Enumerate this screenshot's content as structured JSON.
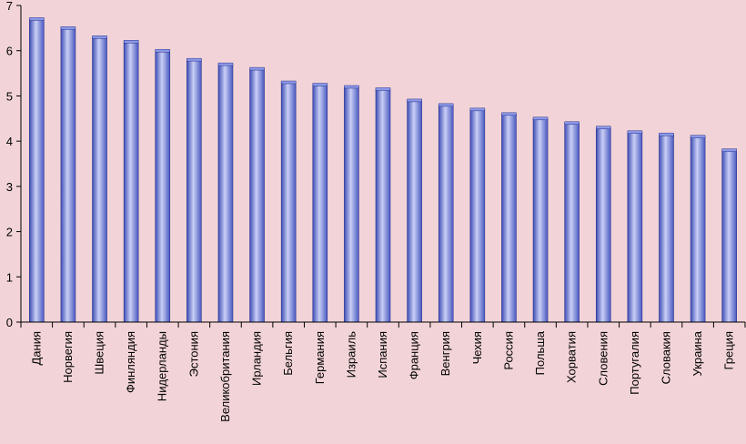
{
  "chart_data": {
    "type": "bar",
    "title": "",
    "xlabel": "",
    "ylabel": "",
    "ylim": [
      0,
      7
    ],
    "yticks": [
      0,
      1,
      2,
      3,
      4,
      5,
      6,
      7
    ],
    "grid": false,
    "legend": "none",
    "categories": [
      "Дания",
      "Норвегия",
      "Швеция",
      "Финляндия",
      "Нидерланды",
      "Эстония",
      "Великобритания",
      "Ирландия",
      "Бельгия",
      "Германия",
      "Израиль",
      "Испания",
      "Франция",
      "Венгрия",
      "Чехия",
      "Россия",
      "Польша",
      "Хорватия",
      "Словения",
      "Португалия",
      "Словакия",
      "Украина",
      "Греция"
    ],
    "values": [
      6.7,
      6.5,
      6.3,
      6.2,
      6.0,
      5.8,
      5.7,
      5.6,
      5.3,
      5.25,
      5.2,
      5.15,
      4.9,
      4.8,
      4.7,
      4.6,
      4.5,
      4.4,
      4.3,
      4.2,
      4.15,
      4.1,
      3.8
    ],
    "colors": {
      "background": "#f2d4d8",
      "bar_light": "#c9cff5",
      "bar_mid": "#8c98e6",
      "bar_dark": "#3e4db5",
      "bar_edge": "#2b3490"
    }
  }
}
